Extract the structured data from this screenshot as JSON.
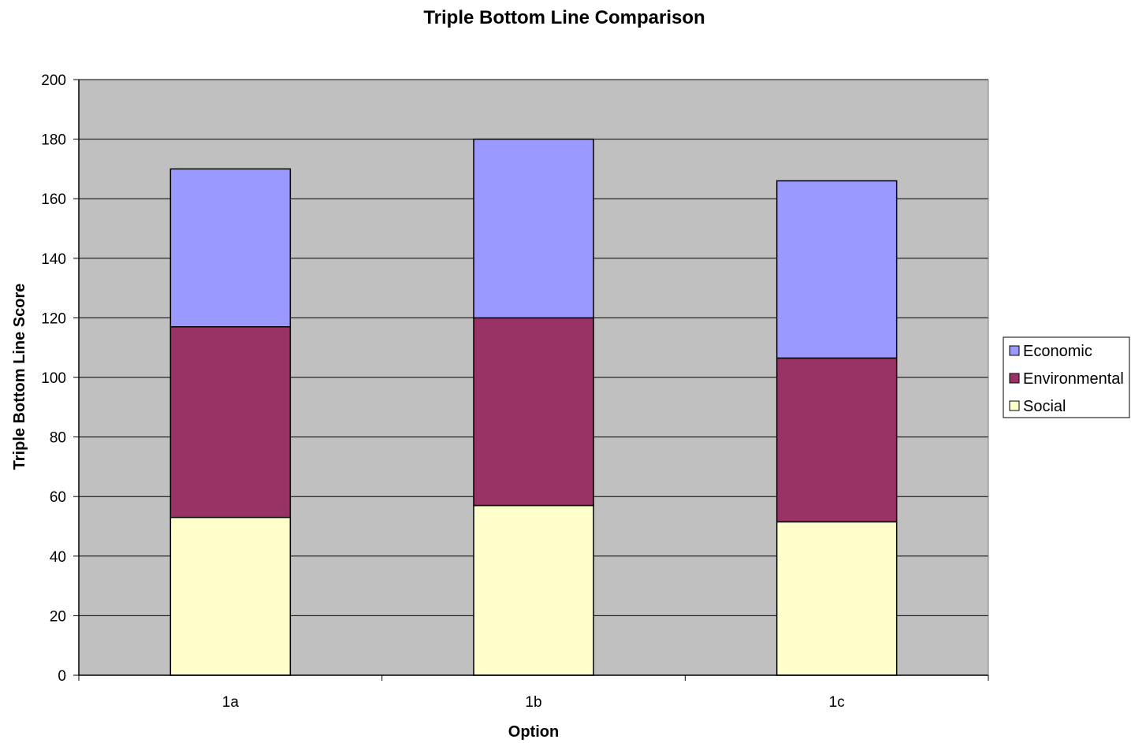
{
  "chart_data": {
    "type": "bar",
    "stacked": true,
    "title": "Triple Bottom Line Comparison",
    "xlabel": "Option",
    "ylabel": "Triple Bottom Line Score",
    "ylim": [
      0,
      200
    ],
    "yticks": [
      0,
      20,
      40,
      60,
      80,
      100,
      120,
      140,
      160,
      180,
      200
    ],
    "categories": [
      "1a",
      "1b",
      "1c"
    ],
    "series": [
      {
        "name": "Social",
        "values": [
          53,
          57,
          51.5
        ],
        "color": "#FFFFCC"
      },
      {
        "name": "Environmental",
        "values": [
          64,
          63,
          55
        ],
        "color": "#993366"
      },
      {
        "name": "Economic",
        "values": [
          53,
          60,
          59.5
        ],
        "color": "#9999FF"
      }
    ],
    "legend_order": [
      "Economic",
      "Environmental",
      "Social"
    ],
    "legend_position": "right",
    "grid": true,
    "plot_background": "#C0C0C0"
  }
}
